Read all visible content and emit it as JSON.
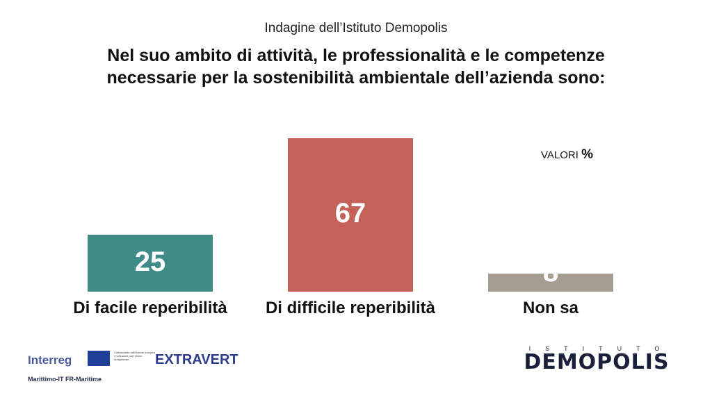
{
  "header": {
    "subtitle": "Indagine dell’Istituto Demopolis",
    "title_line1": "Nel suo ambito di attività, le professionalità e le competenze",
    "title_line2": "necessarie per la sostenibilità ambientale dell’azienda sono:",
    "unit_label": "VALORI",
    "unit_symbol": "%"
  },
  "chart_data": {
    "type": "bar",
    "categories": [
      "Di facile reperibilità",
      "Di difficile reperibilità",
      "Non sa"
    ],
    "values": [
      25,
      67,
      8
    ],
    "colors": [
      "#3f8b88",
      "#c4625a",
      "#a69d91"
    ],
    "ylim": [
      0,
      100
    ],
    "grid": false
  },
  "footer": {
    "interreg": "Interreg",
    "eu_text": "Cofinanziato dall'Unione europea / Cofinancé par l'Union européenne",
    "extravert": "EXTRAVERT",
    "program": "Marittimo-IT FR-Maritime",
    "demopolis_top": "ISTITUTO",
    "demopolis": "DEMOPOLIS"
  }
}
